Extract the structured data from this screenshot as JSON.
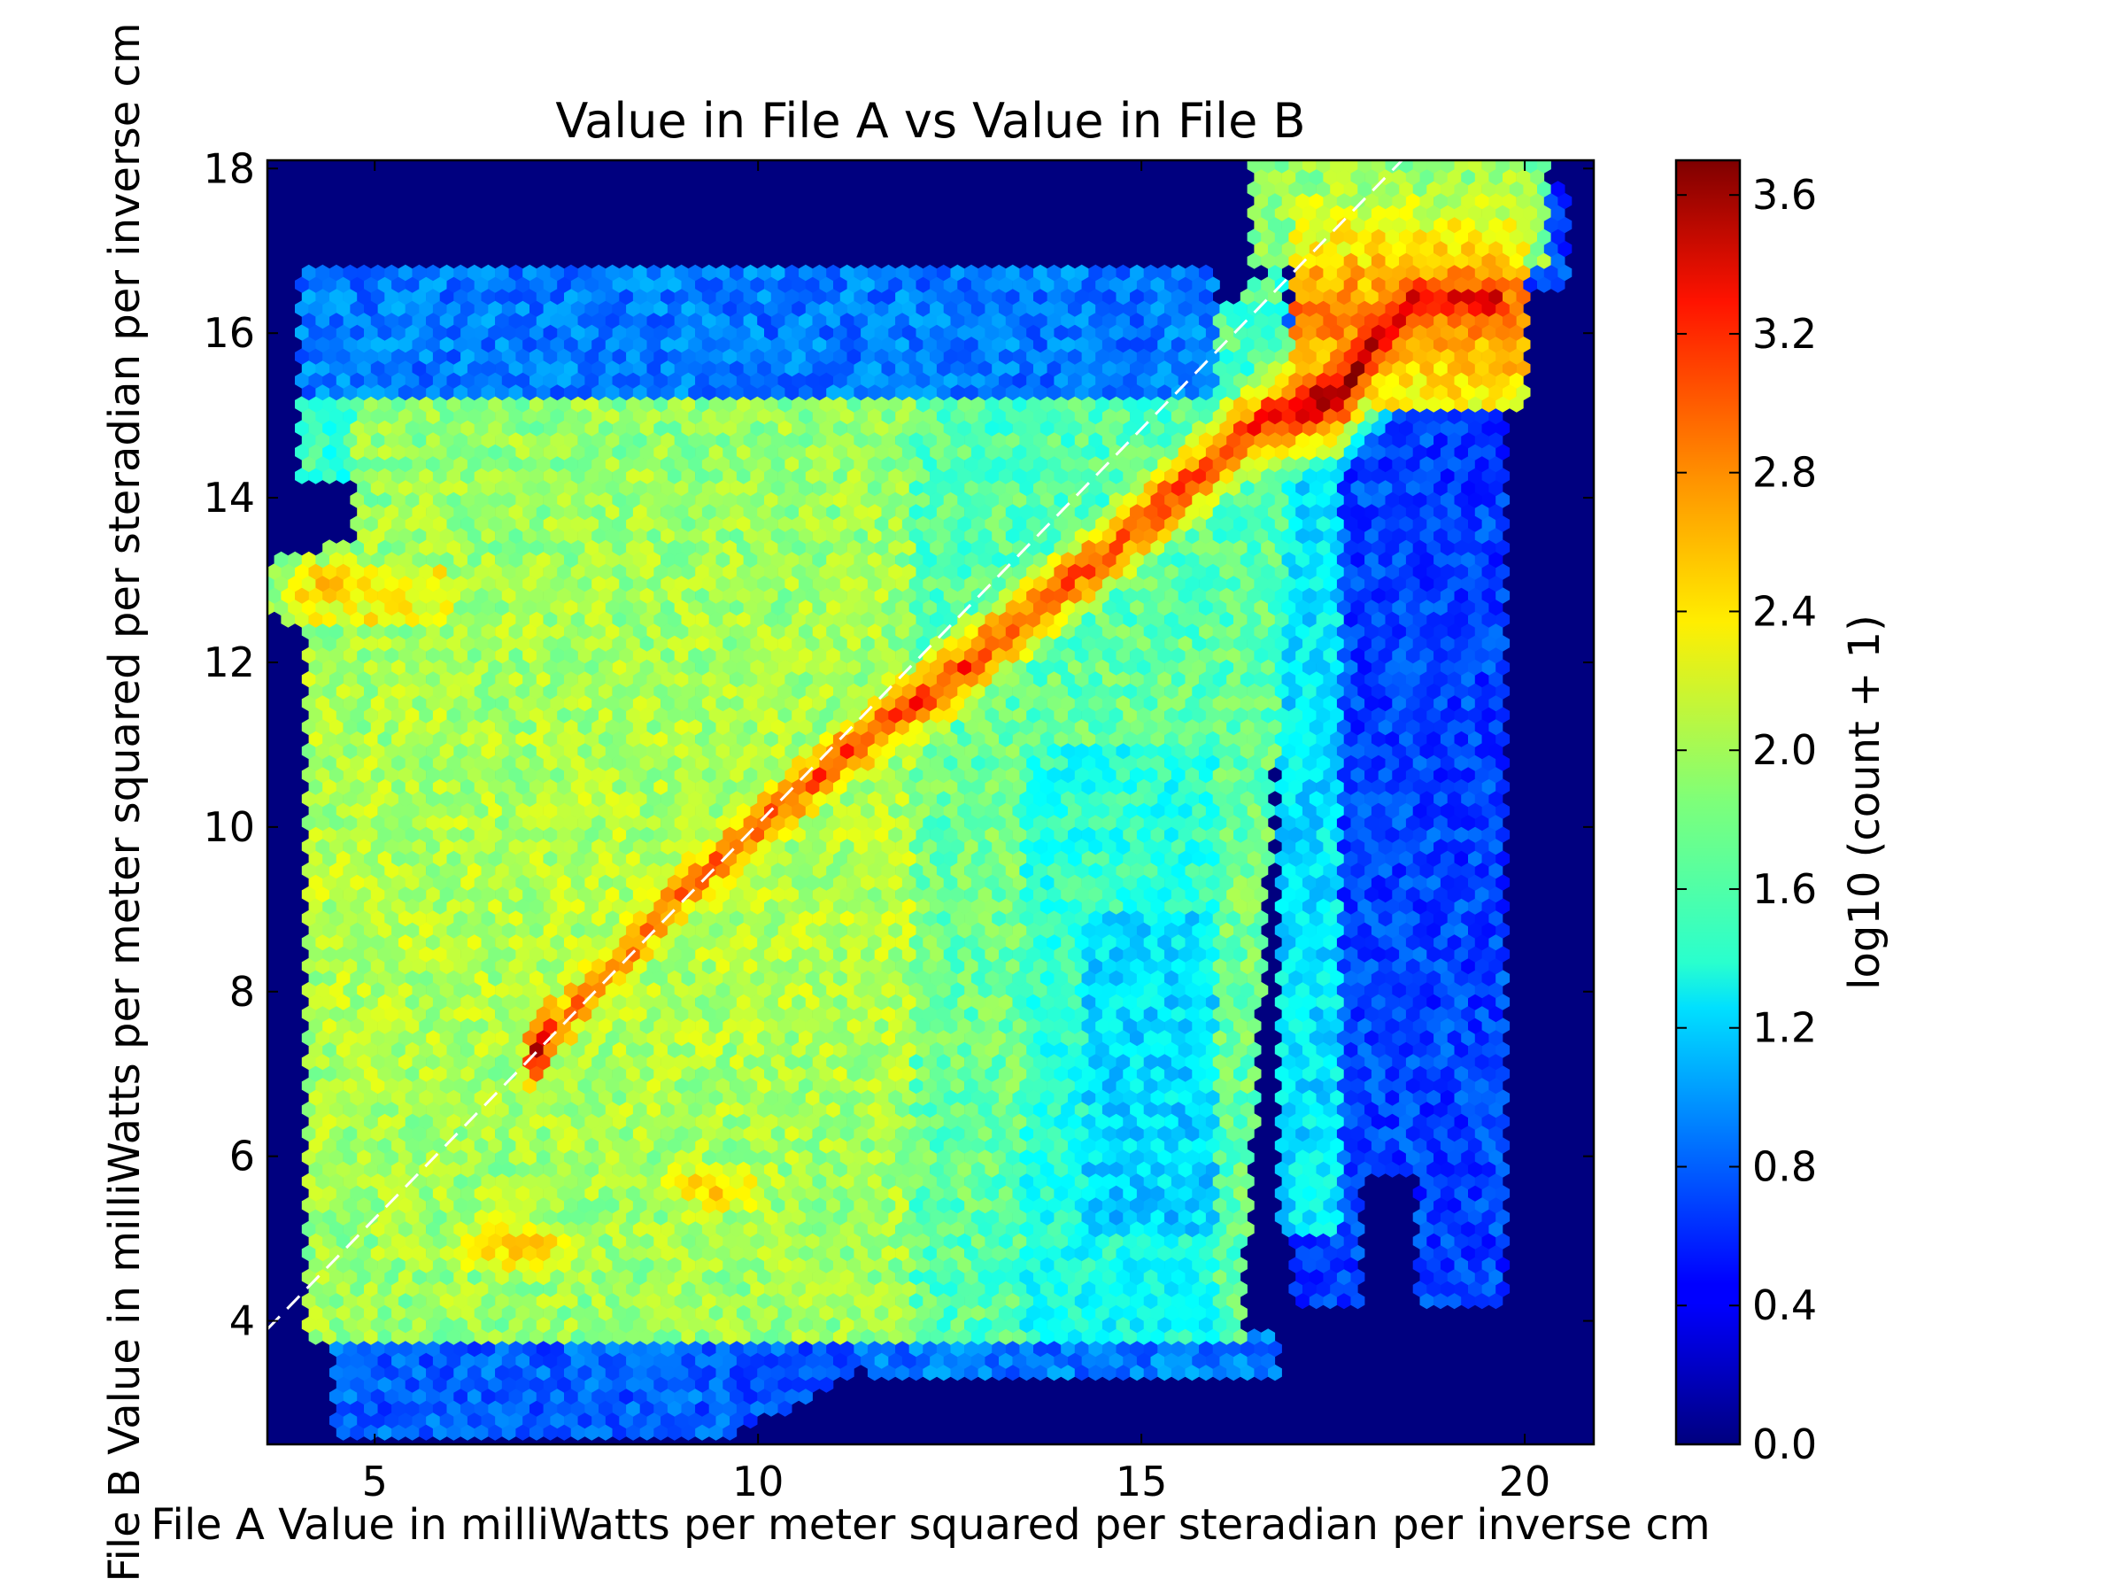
{
  "chart_data": {
    "type": "heatmap",
    "subtype": "hexbin",
    "title": "Value in File A vs Value in File B",
    "xlabel": "File A Value in milliWatts per meter squared per steradian per inverse cm",
    "ylabel": "File B Value in milliWatts per meter squared per steradian per inverse cm",
    "xlim": [
      3.6,
      20.9
    ],
    "ylim": [
      2.5,
      18.1
    ],
    "xticks": [
      5,
      10,
      15,
      20
    ],
    "yticks": [
      4,
      6,
      8,
      10,
      12,
      14,
      16,
      18
    ],
    "colormap": "jet",
    "background_color": "#00007f",
    "reference_line": {
      "style": "dashed",
      "color": "#ffffff",
      "from": [
        3.6,
        3.9
      ],
      "to": [
        18.4,
        18.1
      ]
    },
    "colorbar": {
      "label": "log10 (count + 1)",
      "range": [
        0.0,
        3.7
      ],
      "ticks": [
        "0.0",
        "0.4",
        "0.8",
        "1.2",
        "1.6",
        "2.0",
        "2.4",
        "2.8",
        "3.2",
        "3.6"
      ],
      "tick_values": [
        0.0,
        0.4,
        0.8,
        1.2,
        1.6,
        2.0,
        2.4,
        2.8,
        3.2,
        3.6
      ]
    },
    "density_regions": {
      "main_block": {
        "x": [
          4.0,
          16.9
        ],
        "y": [
          3.7,
          16.7
        ],
        "level": 1.9
      },
      "high_density_ridge": [
        {
          "x": 7.3,
          "y": 7.5,
          "level": 2.9
        },
        {
          "x": 9.0,
          "y": 9.2,
          "level": 2.9
        },
        {
          "x": 11.0,
          "y": 10.8,
          "level": 3.0
        },
        {
          "x": 12.5,
          "y": 11.8,
          "level": 3.1
        },
        {
          "x": 14.5,
          "y": 13.3,
          "level": 3.0
        },
        {
          "x": 16.5,
          "y": 14.9,
          "level": 3.2
        },
        {
          "x": 17.6,
          "y": 15.3,
          "level": 3.7
        },
        {
          "x": 18.5,
          "y": 16.4,
          "level": 3.4
        }
      ],
      "secondary_peaks": [
        {
          "x": 4.5,
          "y": 12.9,
          "level": 2.6
        },
        {
          "x": 6.9,
          "y": 4.9,
          "level": 2.7
        },
        {
          "x": 9.4,
          "y": 5.6,
          "level": 2.6
        }
      ],
      "sparse_right_band": {
        "x": [
          17.0,
          19.8
        ],
        "y": [
          4.2,
          15.2
        ],
        "level": 0.7
      },
      "sparse_bottom_band": {
        "x": [
          4.5,
          11.5
        ],
        "y": [
          2.5,
          3.9
        ],
        "level": 0.8
      },
      "sparse_top_band": {
        "x": [
          4.0,
          16.0
        ],
        "y": [
          15.2,
          16.8
        ],
        "level": 0.9
      }
    }
  }
}
